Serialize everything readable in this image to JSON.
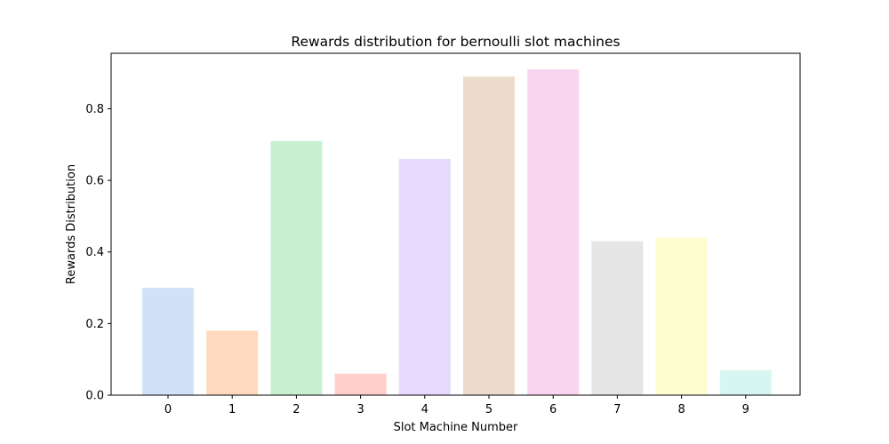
{
  "chart_data": {
    "type": "bar",
    "title": "Rewards distribution for bernoulli slot machines",
    "xlabel": "Slot Machine Number",
    "ylabel": "Rewards Distribution",
    "categories": [
      "0",
      "1",
      "2",
      "3",
      "4",
      "5",
      "6",
      "7",
      "8",
      "9"
    ],
    "values": [
      0.3,
      0.18,
      0.71,
      0.06,
      0.66,
      0.89,
      0.91,
      0.43,
      0.44,
      0.07
    ],
    "colors": [
      "#cfe2f7",
      "#fed9bd",
      "#c6f0cf",
      "#fecfcb",
      "#e5dafe",
      "#eddccc",
      "#f9d5f0",
      "#e5e5e5",
      "#fefdd2",
      "#d7f6f2"
    ],
    "ylim": [
      0,
      0.955
    ],
    "yticks": [
      0.0,
      0.2,
      0.4,
      0.6,
      0.8
    ],
    "ytick_labels": [
      "0.0",
      "0.2",
      "0.4",
      "0.6",
      "0.8"
    ],
    "grid": false,
    "legend": "none"
  }
}
